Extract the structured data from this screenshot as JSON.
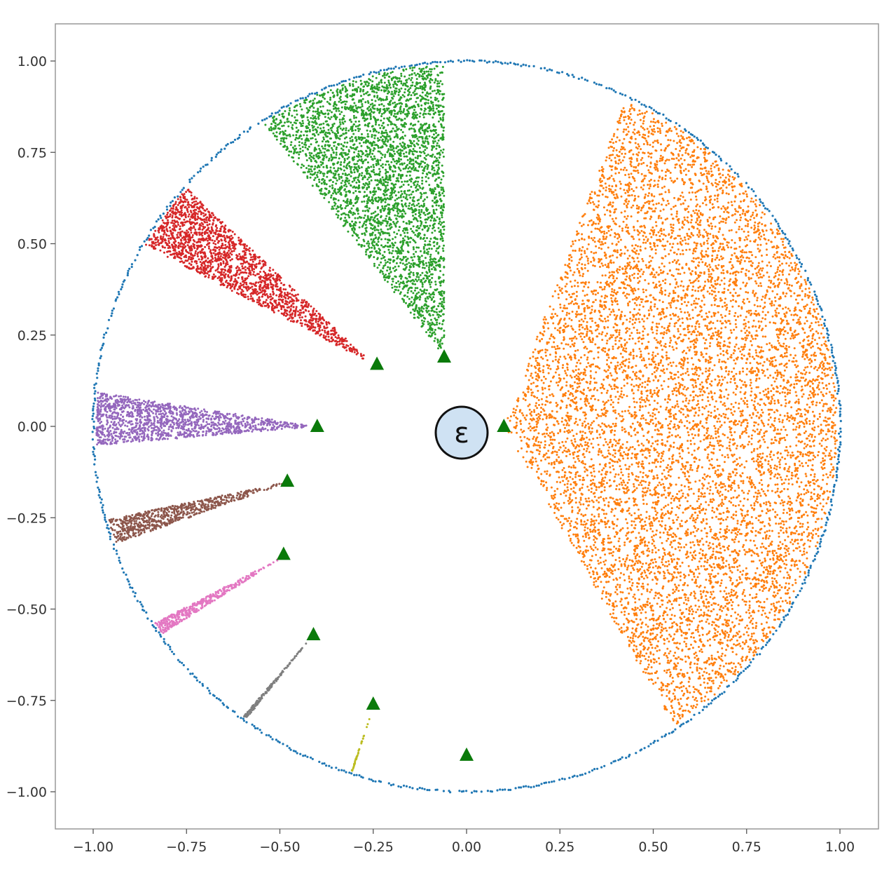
{
  "chart_data": {
    "type": "scatter",
    "title": "",
    "xlabel": "",
    "ylabel": "",
    "xlim": [
      -1.1,
      1.1
    ],
    "ylim": [
      -1.1,
      1.1
    ],
    "xticks": [
      "−1.00",
      "−0.75",
      "−0.50",
      "−0.25",
      "0.00",
      "0.25",
      "0.50",
      "0.75",
      "1.00"
    ],
    "yticks": [
      "1.00",
      "0.75",
      "0.50",
      "0.25",
      "0.00",
      "−0.25",
      "−0.50",
      "−0.75",
      "−1.00"
    ],
    "grid": false,
    "legend": "none",
    "annotation": "ε",
    "boundary": {
      "shape": "unit-circle",
      "radius": 1.0,
      "color": "#1f77b4"
    },
    "sectors": [
      {
        "color": "#ff7f0e",
        "apex": [
          0.1,
          0.0
        ],
        "angle_start": -61,
        "angle_end": 70,
        "points": 9000
      },
      {
        "color": "#2ca02c",
        "apex": [
          -0.06,
          0.19
        ],
        "angle_start": 90,
        "angle_end": 127,
        "points": 3600
      },
      {
        "color": "#d62728",
        "apex": [
          -0.25,
          0.17
        ],
        "angle_start": 136,
        "angle_end": 152,
        "points": 1900
      },
      {
        "color": "#9467bd",
        "apex": [
          -0.4,
          0.0
        ],
        "angle_start": 171,
        "angle_end": 185,
        "points": 1400
      },
      {
        "color": "#8c564b",
        "apex": [
          -0.47,
          -0.15
        ],
        "angle_start": 192,
        "angle_end": 200,
        "points": 700
      },
      {
        "color": "#e377c2",
        "apex": [
          -0.48,
          -0.35
        ],
        "angle_start": 208,
        "angle_end": 213,
        "points": 380
      },
      {
        "color": "#7f7f7f",
        "apex": [
          -0.41,
          -0.57
        ],
        "angle_start": 230,
        "angle_end": 232,
        "points": 160
      },
      {
        "color": "#bcbd22",
        "apex": [
          -0.25,
          -0.77
        ],
        "angle_start": 251.5,
        "angle_end": 252.2,
        "points": 40
      }
    ],
    "markers": {
      "shape": "triangle",
      "color": "#0a7a0a",
      "points": [
        [
          0.1,
          0.0
        ],
        [
          -0.06,
          0.19
        ],
        [
          -0.24,
          0.17
        ],
        [
          -0.4,
          0.0
        ],
        [
          -0.48,
          -0.15
        ],
        [
          -0.49,
          -0.35
        ],
        [
          -0.41,
          -0.57
        ],
        [
          -0.25,
          -0.76
        ],
        [
          0.0,
          -0.9
        ]
      ]
    }
  }
}
